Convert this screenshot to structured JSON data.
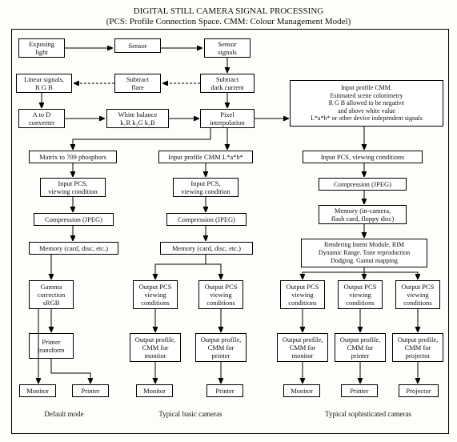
{
  "title_line1": "DIGITAL STILL CAMERA SIGNAL PROCESSING",
  "title_line2": "(PCS: Profile Connection Space. CMM: Colour Management Model)",
  "nodes": {
    "exposing_light": "Exposing\nlight",
    "sensor": "Sensor",
    "sensor_signals": "Sensor\nsignals",
    "linear_signals": "Linear signals,\nR G B",
    "subtract_flare": "Subtract\nflare",
    "subtract_dark": "Subtract\ndark current",
    "a_to_d": "A to D\nconverter",
    "white_balance": "White balance\nk₁R k₂G k₃B",
    "pixel_interp": "Pixel\ninterpolation",
    "input_profile_large": "Input profile CMM.\nEstimated scene colorimetry\nR G B allowed to be negative\nand above white value\nL*a*b* or other device independent signals",
    "matrix709": "Matrix to 709 phosphors",
    "input_profile_lab": "Input profile CMM L*a*b*",
    "input_pcs_view_right": "Input PCS, viewing conditions",
    "input_pcs_left": "Input PCS,\nviewing condition",
    "input_pcs_mid": "Input PCS,\nviewing condition",
    "compression_left": "Compression (JPEG)",
    "compression_mid": "Compression (JPEG)",
    "compression_right": "Compression (JPEG)",
    "memory_left": "Memory (card, disc, etc.)",
    "memory_mid": "Memory (card, disc, etc.)",
    "memory_right": "Memory (in-camera,\nflash card, floppy disc)",
    "rendering_intent": "Rendering Intent Module, RIM\nDynamic Range. Tone reproduction\nDodging. Gamut mapping",
    "gamma_srgb": "Gamma\ncorrection\nsRGB",
    "out_pcs_b1": "Output PCS\nviewing\nconditions",
    "out_pcs_b2": "Output PCS\nviewing\nconditions",
    "out_pcs_s1": "Output PCS\nviewing\nconditions",
    "out_pcs_s2": "Output PCS\nviewing\nconditions",
    "out_pcs_s3": "Output PCS\nviewing\nconditions",
    "printer_transform": "Printer\ntransform",
    "out_cmm_monitor_b": "Output profile,\nCMM for\nmonitor",
    "out_cmm_printer_b": "Output profile,\nCMM for\nprinter",
    "out_cmm_monitor_s": "Output profile,\nCMM for\nmonitor",
    "out_cmm_printer_s": "Output profile,\nCMM for\nprinter",
    "out_cmm_projector_s": "Output profile,\nCMM for\nprojector",
    "monitor1": "Monitor",
    "printer1": "Printer",
    "monitor2": "Monitor",
    "printer2": "Printer",
    "monitor3": "Monitor",
    "printer3": "Printer",
    "projector3": "Projector"
  },
  "captions": {
    "default": "Default mode",
    "basic": "Typical basic cameras",
    "soph": "Typical sophisticated cameras"
  },
  "style": {
    "bg": "#fdfdfa",
    "line": "#000000",
    "font": "Times New Roman"
  }
}
